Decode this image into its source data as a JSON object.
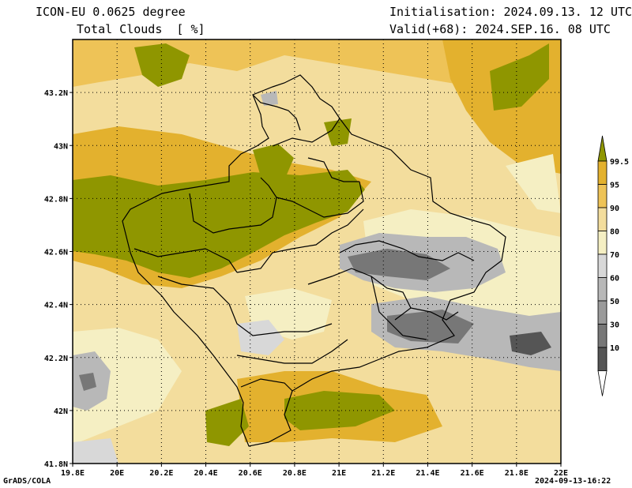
{
  "header": {
    "model": "ICON-EU 0.0625 degree",
    "variable": "Total Clouds  [ %]",
    "init": "Initialisation: 2024.09.13. 12 UTC",
    "valid": "Valid(+68): 2024.SEP.16. 08 UTC"
  },
  "map": {
    "lon_range": [
      19.8,
      22.0
    ],
    "lat_range": [
      41.8,
      43.4
    ],
    "lat_ticks": [
      "43.2N",
      "43N",
      "42.8N",
      "42.6N",
      "42.4N",
      "42.2N",
      "42N",
      "41.8N"
    ],
    "lon_ticks": [
      "19.8E",
      "20E",
      "20.2E",
      "20.4E",
      "20.6E",
      "20.8E",
      "21E",
      "21.2E",
      "21.4E",
      "21.6E",
      "21.8E",
      "22E"
    ],
    "grid": "dotted"
  },
  "colorbar": {
    "labels": [
      "99.5",
      "95",
      "90",
      "80",
      "70",
      "60",
      "50",
      "30",
      "10"
    ],
    "colors": [
      "#8f9600",
      "#e3b12e",
      "#eec357",
      "#f3dd9d",
      "#f5efc3",
      "#d8d8d8",
      "#b8b8b8",
      "#9a9a9a",
      "#777777",
      "#555555",
      "#ffffff"
    ]
  },
  "footer": {
    "left": "GrADS/COLA",
    "right": "2024-09-13-16:22"
  }
}
